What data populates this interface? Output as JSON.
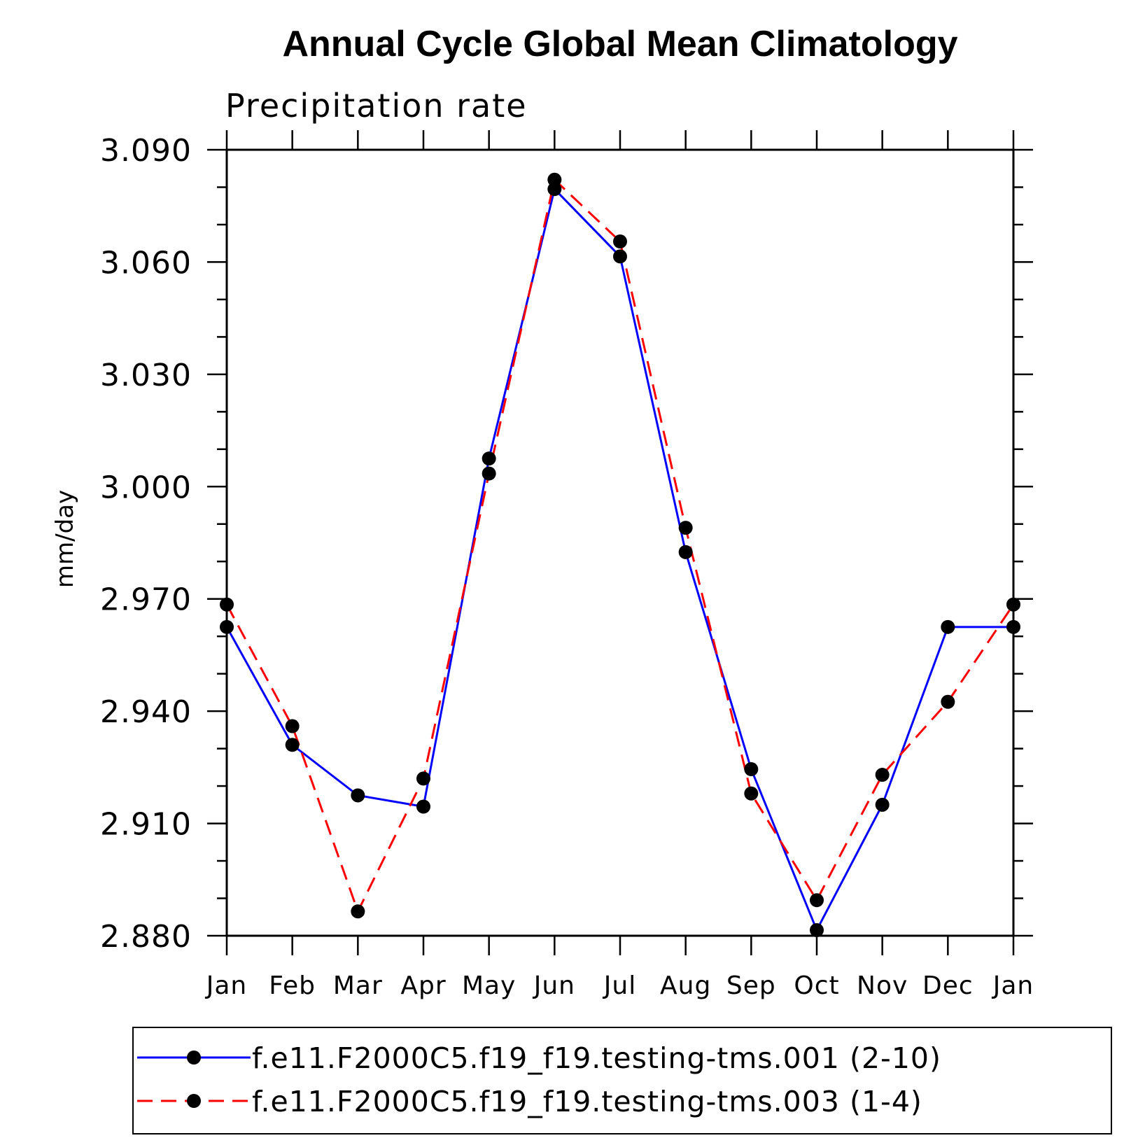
{
  "chart_data": {
    "type": "line",
    "title": "Annual Cycle Global Mean Climatology",
    "subtitle": "Precipitation rate",
    "ylabel": "mm/day",
    "xlabel": "",
    "ylim": [
      2.88,
      3.09
    ],
    "yticks": [
      "2.880",
      "2.910",
      "2.940",
      "2.970",
      "3.000",
      "3.030",
      "3.060",
      "3.090"
    ],
    "categories": [
      "Jan",
      "Feb",
      "Mar",
      "Apr",
      "May",
      "Jun",
      "Jul",
      "Aug",
      "Sep",
      "Oct",
      "Nov",
      "Dec",
      "Jan"
    ],
    "series": [
      {
        "name": "f.e11.F2000C5.f19_f19.testing-tms.001 (2-10)",
        "color": "#0000ff",
        "dash": "solid",
        "marker": "filled-circle",
        "values": [
          2.9625,
          2.931,
          2.9175,
          2.9145,
          3.0075,
          3.0795,
          3.0615,
          2.9825,
          2.9245,
          2.8815,
          2.915,
          2.9625,
          2.9625
        ]
      },
      {
        "name": "f.e11.F2000C5.f19_f19.testing-tms.003 (1-4)",
        "color": "#ff0000",
        "dash": "dashed",
        "marker": "filled-circle",
        "values": [
          2.9685,
          2.936,
          2.8865,
          2.922,
          3.0035,
          3.082,
          3.0655,
          2.989,
          2.918,
          2.8895,
          2.923,
          2.9425,
          2.9685
        ]
      }
    ],
    "legend_position": "bottom"
  }
}
